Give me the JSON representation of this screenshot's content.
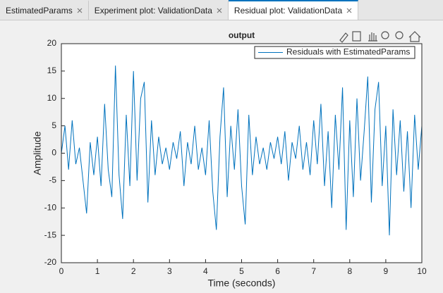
{
  "tabs": [
    "EstimatedParams",
    "Experiment plot: ValidationData",
    "Residual plot: ValidationData"
  ],
  "active_tab": 2,
  "chart_data": {
    "type": "line",
    "title": "output",
    "xlabel": "Time (seconds)",
    "ylabel": "Amplitude",
    "x": [
      0,
      0.1,
      0.2,
      0.3,
      0.4,
      0.5,
      0.6,
      0.7,
      0.8,
      0.9,
      1,
      1.1,
      1.2,
      1.3,
      1.4,
      1.5,
      1.6,
      1.7,
      1.8,
      1.9,
      2,
      2.1,
      2.2,
      2.3,
      2.4,
      2.5,
      2.6,
      2.7,
      2.8,
      2.9,
      3,
      3.1,
      3.2,
      3.3,
      3.4,
      3.5,
      3.6,
      3.7,
      3.8,
      3.9,
      4,
      4.1,
      4.2,
      4.3,
      4.4,
      4.5,
      4.6,
      4.7,
      4.8,
      4.9,
      5,
      5.1,
      5.2,
      5.3,
      5.4,
      5.5,
      5.6,
      5.7,
      5.8,
      5.9,
      6,
      6.1,
      6.2,
      6.3,
      6.4,
      6.5,
      6.6,
      6.7,
      6.8,
      6.9,
      7,
      7.1,
      7.2,
      7.3,
      7.4,
      7.5,
      7.6,
      7.7,
      7.8,
      7.9,
      8,
      8.1,
      8.2,
      8.3,
      8.4,
      8.5,
      8.6,
      8.7,
      8.8,
      8.9,
      9,
      9.1,
      9.2,
      9.3,
      9.4,
      9.5,
      9.6,
      9.7,
      9.8,
      9.9,
      10
    ],
    "series": [
      {
        "name": "Residuals with EstimatedParams",
        "color": "#0072bd",
        "values": [
          0,
          5,
          -3,
          6,
          -2,
          1,
          -5,
          -11,
          2,
          -4,
          3,
          -6,
          9,
          -3,
          -8,
          16,
          -4,
          -12,
          7,
          -6,
          15,
          -5,
          10,
          13,
          -9,
          6,
          -4,
          3,
          -2,
          1,
          -3,
          2,
          -1,
          4,
          -6,
          2,
          -2,
          5,
          -3,
          1,
          -4,
          6,
          -7,
          -14,
          3,
          12,
          -8,
          5,
          -3,
          8,
          -6,
          -13,
          7,
          -4,
          3,
          -2,
          1,
          -3,
          2,
          -1,
          3,
          -2,
          4,
          -5,
          2,
          -1,
          5,
          -3,
          2,
          -4,
          6,
          -2,
          9,
          -6,
          4,
          -10,
          7,
          -3,
          12,
          -14,
          6,
          -8,
          10,
          -5,
          4,
          14,
          -9,
          8,
          13,
          -6,
          5,
          -15,
          8,
          -4,
          6,
          -7,
          4,
          -10,
          7,
          -3,
          5
        ]
      }
    ],
    "xlim": [
      0,
      10
    ],
    "ylim": [
      -20,
      20
    ],
    "xticks": [
      0,
      1,
      2,
      3,
      4,
      5,
      6,
      7,
      8,
      9,
      10
    ],
    "yticks": [
      -20,
      -15,
      -10,
      -5,
      0,
      5,
      10,
      15,
      20
    ],
    "grid": false,
    "legend": "upper right"
  }
}
